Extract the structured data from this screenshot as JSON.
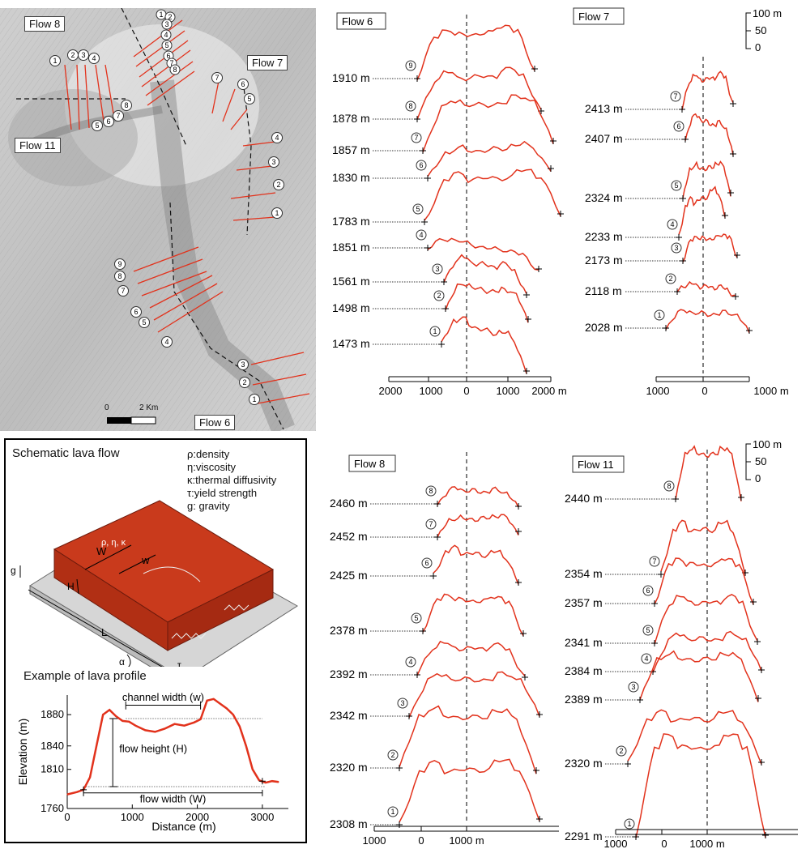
{
  "map": {
    "labels": [
      "Flow 8",
      "Flow 7",
      "Flow 11",
      "Flow 6"
    ],
    "scale_label": "2 Km",
    "scale_zero": "0"
  },
  "panels": {
    "flow6": {
      "title": "Flow 6",
      "elev": [
        "1910 m",
        "1878 m",
        "1857 m",
        "1830 m",
        "1783 m",
        "1851 m",
        "1561 m",
        "1498 m",
        "1473 m"
      ],
      "nums": [
        "9",
        "8",
        "7",
        "6",
        "5",
        "4",
        "3",
        "2",
        "1"
      ],
      "axis": [
        "2000",
        "1000",
        "0",
        "1000",
        "2000 m"
      ]
    },
    "flow7": {
      "title": "Flow 7",
      "elev": [
        "2413 m",
        "2407 m",
        "2324 m",
        "2233 m",
        "2173 m",
        "2118 m",
        "2028 m"
      ],
      "nums": [
        "7",
        "6",
        "5",
        "4",
        "3",
        "2",
        "1"
      ],
      "axis": [
        "1000",
        "0",
        "1000 m"
      ]
    },
    "flow8": {
      "title": "Flow 8",
      "elev": [
        "2460 m",
        "2452 m",
        "2425 m",
        "2378 m",
        "2392 m",
        "2342 m",
        "2320 m",
        "2308 m"
      ],
      "nums": [
        "8",
        "7",
        "6",
        "5",
        "4",
        "3",
        "2",
        "1"
      ],
      "axis": [
        "1000",
        "0",
        "1000 m"
      ]
    },
    "flow11": {
      "title": "Flow 11",
      "elev": [
        "2440 m",
        "2354 m",
        "2357 m",
        "2341 m",
        "2384 m",
        "2389 m",
        "2320 m",
        "2291 m"
      ],
      "nums": [
        "8",
        "7",
        "6",
        "5",
        "4",
        "3",
        "2",
        "1"
      ],
      "axis": [
        "1000",
        "0",
        "1000 m"
      ]
    }
  },
  "vscale": [
    "100 m",
    "50",
    "0"
  ],
  "schematic": {
    "title": "Schematic lava flow",
    "legend": [
      "ρ:density",
      "η:viscosity",
      "κ:thermal diffusivity",
      "τ:yield strength",
      "g: gravity"
    ],
    "block_label": "ρ, η, κ",
    "symbols": [
      "W",
      "w",
      "H",
      "L",
      "g",
      "α",
      "τ"
    ],
    "example_title": "Example of lava profile",
    "annotations": [
      "channel width (w)",
      "flow height (H)",
      "flow width (W)"
    ]
  },
  "chart_data": {
    "type": "line",
    "xlabel": "Distance (m)",
    "ylabel": "Elevation (m)",
    "xticks": [
      "0",
      "1000",
      "2000",
      "3000"
    ],
    "yticks": [
      "1760",
      "1810",
      "1840",
      "1880"
    ],
    "xlim": [
      0,
      3400
    ],
    "ylim": [
      1760,
      1905
    ],
    "x": [
      0,
      150,
      250,
      350,
      450,
      550,
      650,
      750,
      850,
      950,
      1050,
      1200,
      1350,
      1500,
      1650,
      1800,
      1950,
      2050,
      2150,
      2250,
      2350,
      2450,
      2550,
      2650,
      2750,
      2850,
      2950,
      3050,
      3150,
      3250
    ],
    "y": [
      1778,
      1781,
      1784,
      1800,
      1840,
      1880,
      1886,
      1878,
      1872,
      1871,
      1866,
      1860,
      1858,
      1862,
      1868,
      1866,
      1870,
      1874,
      1898,
      1900,
      1894,
      1888,
      1880,
      1865,
      1840,
      1810,
      1796,
      1793,
      1795,
      1794
    ]
  },
  "colors": {
    "profile": "#e2321c",
    "block": "#c93a1c"
  }
}
